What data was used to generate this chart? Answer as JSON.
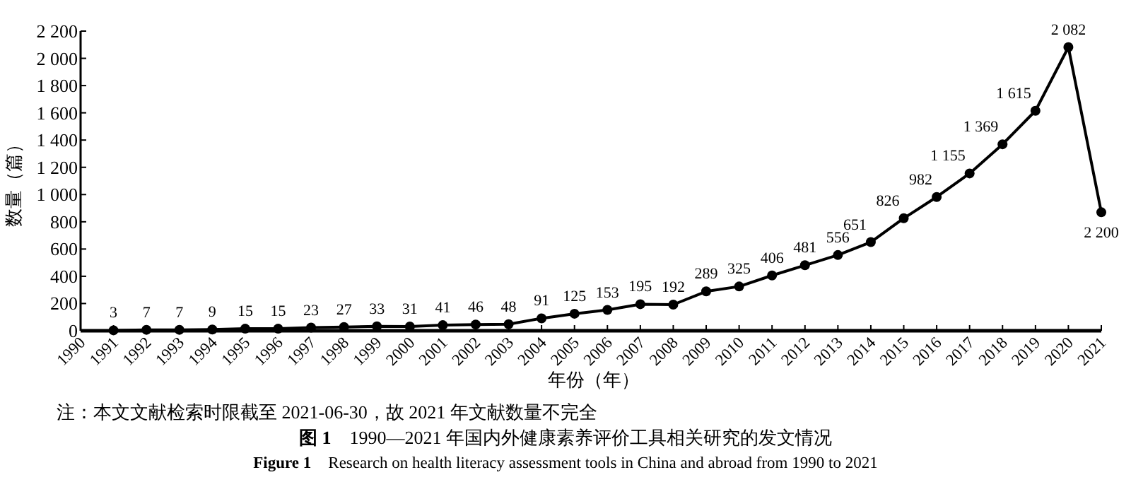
{
  "chart_data": {
    "type": "line",
    "title": "**图 1**　1990—2021 年国内外健康素养评价工具相关研究的发文情况",
    "subtitle": "**Figure 1**　Research on health literacy assessment tools in China and abroad from 1990 to 2021",
    "xlabel": "年份（年）",
    "ylabel": "数量（篇）",
    "annotations": [
      "注：本文文献检索时限截至 2021-06-30，故 2021 年文献数量不完全",
      {
        "text": "2 200",
        "x": 2021,
        "y": 870
      }
    ],
    "x": [
      1991,
      1992,
      1993,
      1994,
      1995,
      1996,
      1997,
      1998,
      1999,
      2000,
      2001,
      2002,
      2003,
      2004,
      2005,
      2006,
      2007,
      2008,
      2009,
      2010,
      2011,
      2012,
      2013,
      2014,
      2015,
      2016,
      2017,
      2018,
      2019,
      2020,
      2021
    ],
    "values": [
      3,
      7,
      7,
      9,
      15,
      15,
      23,
      27,
      33,
      31,
      41,
      46,
      48,
      91,
      125,
      153,
      195,
      192,
      289,
      325,
      406,
      481,
      556,
      651,
      826,
      982,
      1155,
      1369,
      1615,
      2082,
      870
    ],
    "value_labels": [
      "3",
      "7",
      "7",
      "9",
      "15",
      "15",
      "23",
      "27",
      "33",
      "31",
      "41",
      "46",
      "48",
      "91",
      "125",
      "153",
      "195",
      "192",
      "289",
      "325",
      "406",
      "481",
      "556",
      "651",
      "826",
      "982",
      "1 155",
      "1 369",
      "1 615",
      "2 082",
      null
    ],
    "color": "#000000",
    "marker": "circle",
    "line_style": "solid",
    "xlim": [
      1990,
      2021
    ],
    "xticks": [
      1990,
      1991,
      1992,
      1993,
      1994,
      1995,
      1996,
      1997,
      1998,
      1999,
      2000,
      2001,
      2002,
      2003,
      2004,
      2005,
      2006,
      2007,
      2008,
      2009,
      2010,
      2011,
      2012,
      2013,
      2014,
      2015,
      2016,
      2017,
      2018,
      2019,
      2020,
      2021
    ],
    "ylim": [
      0,
      2200
    ],
    "yticks": [
      0,
      200,
      400,
      600,
      800,
      {
        "value": 1000,
        "label": "1 000"
      },
      {
        "value": 1200,
        "label": "1 200"
      },
      {
        "value": 1400,
        "label": "1 400"
      },
      {
        "value": 1600,
        "label": "1 600"
      },
      {
        "value": 1800,
        "label": "1 800"
      },
      {
        "value": 2000,
        "label": "2 000"
      },
      {
        "value": 2200,
        "label": "2 200"
      }
    ]
  }
}
